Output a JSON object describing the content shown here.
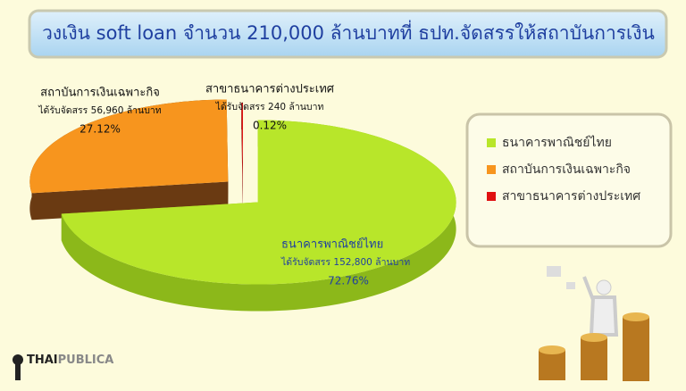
{
  "chart_data": {
    "type": "pie",
    "title": "วงเงิน soft loan จำนวน 210,000 ล้านบาทที่ ธปท.จัดสรรให้สถาบันการเงิน",
    "categories": [
      "ธนาคารพาณิชย์ไทย",
      "สถาบันการเงินเฉพาะกิจ",
      "สาขาธนาคารต่างประเทศ"
    ],
    "values": [
      72.76,
      27.12,
      0.12
    ],
    "value_labels": [
      "72.76%",
      "27.12%",
      "0.12%"
    ],
    "amount_labels": [
      "ได้รับจัดสรร 152,800 ล้านบาท",
      "ได้รับจัดสรร 56,960 ล้านบาท",
      "ได้รับจัดสรร 240 ล้านบาท"
    ],
    "colors": [
      "#b8e62a",
      "#f7951e",
      "#e01010"
    ],
    "side_colors": [
      "#8cb81a",
      "#6a3a12",
      "#8a0a0a"
    ],
    "legend": "right"
  },
  "logo": {
    "prefix": "THAI",
    "suffix": "PUBLICA"
  }
}
